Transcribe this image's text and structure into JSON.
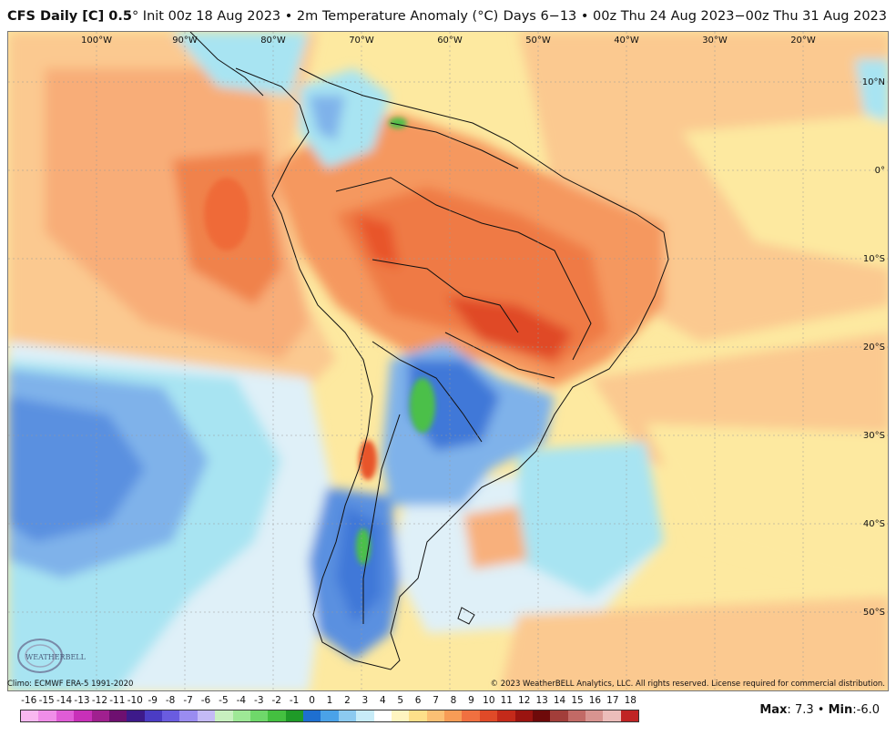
{
  "header": {
    "product": "CFS Daily [C] 0.5",
    "degree_mark": "°",
    "init": "Init 00z 18 Aug 2023",
    "bullet": "•",
    "field": "2m Temperature Anomaly (°C)",
    "valid": "Days 6−13 • 00z Thu 24 Aug 2023−00z Thu 31 Aug 2023"
  },
  "map": {
    "lon_labels": [
      "100°W",
      "90°W",
      "80°W",
      "70°W",
      "60°W",
      "50°W",
      "40°W",
      "30°W",
      "20°W"
    ],
    "lat_labels": [
      "10°N",
      "0°",
      "10°S",
      "20°S",
      "30°S",
      "40°S",
      "50°S"
    ],
    "colors": {
      "ocean_warm_light": "#fde9a0",
      "ocean_warm": "#fbc990",
      "land_warm": "#f5985e",
      "land_hot": "#e8542a",
      "cool_light": "#dff0f8",
      "cool": "#a8e4f2",
      "cold": "#7fb2ea",
      "colder": "#3f78d8",
      "green": "#4cc04a"
    }
  },
  "footer": {
    "climo": "Climo: ECMWF ERA-5 1991-2020",
    "copyright": "© 2023 WeatherBELL Analytics, LLC. All rights reserved. License required for commercial distribution.",
    "logo_text": "WEATHERBELL"
  },
  "legend": {
    "labels": [
      "-16",
      "-15",
      "-14",
      "-13",
      "-12",
      "-11",
      "-10",
      "-9",
      "-8",
      "-7",
      "-6",
      "-5",
      "-4",
      "-3",
      "-2",
      "-1",
      "0",
      "1",
      "2",
      "3",
      "4",
      "5",
      "6",
      "7",
      "8",
      "9",
      "10",
      "11",
      "12",
      "13",
      "14",
      "15",
      "16",
      "17",
      "18"
    ],
    "colors": [
      "#f9b8f0",
      "#f08ee8",
      "#e05cd6",
      "#c830b8",
      "#a0208f",
      "#6e1070",
      "#3d1a8a",
      "#4b3cc4",
      "#6a5ce0",
      "#9a8cf0",
      "#c4baf6",
      "#c8f0c0",
      "#9ee896",
      "#6fd86a",
      "#44c040",
      "#1f9a28",
      "#1e6fd0",
      "#4aa2e8",
      "#8ccaf0",
      "#c8ecf8",
      "#ffffff",
      "#fff4c0",
      "#fde08a",
      "#fbc074",
      "#f79c56",
      "#f07040",
      "#e04a28",
      "#c42a1a",
      "#9a1410",
      "#6e0a0a",
      "#a23e3a",
      "#c26a66",
      "#d89490",
      "#ecbdba",
      "#c02424"
    ]
  },
  "stats": {
    "max_label": "Max",
    "max_value": "7.3",
    "min_label": "Min",
    "min_value": "-6.0",
    "bullet": "•"
  }
}
